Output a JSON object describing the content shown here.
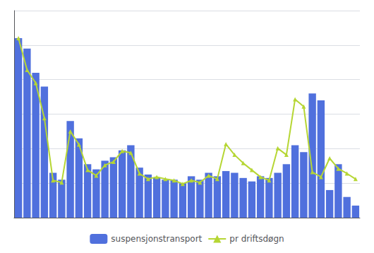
{
  "chart_data": {
    "type": "bar",
    "categories": [
      null,
      null,
      null,
      null,
      null,
      null,
      null,
      null,
      null,
      null,
      null,
      null,
      null,
      null,
      null,
      null,
      null,
      null,
      null,
      null,
      null,
      null,
      null,
      null,
      null,
      null,
      null,
      null,
      null,
      null,
      null,
      null,
      null,
      null,
      null,
      null,
      null,
      null,
      null,
      null
    ],
    "series": [
      {
        "name": "suspensjonstransport",
        "type": "bar",
        "values": [
          520,
          490,
          420,
          380,
          130,
          110,
          280,
          230,
          155,
          140,
          165,
          175,
          195,
          210,
          145,
          125,
          115,
          110,
          110,
          100,
          120,
          110,
          130,
          120,
          135,
          130,
          115,
          105,
          120,
          115,
          130,
          155,
          210,
          190,
          360,
          340,
          80,
          155,
          60,
          35
        ]
      },
      {
        "name": "pr driftsdøgn",
        "type": "line",
        "marker": "triangle",
        "values": [
          520,
          428,
          390,
          288,
          108,
          102,
          250,
          212,
          138,
          122,
          152,
          162,
          193,
          188,
          128,
          112,
          118,
          112,
          108,
          98,
          108,
          102,
          122,
          112,
          213,
          182,
          158,
          138,
          118,
          108,
          201,
          182,
          343,
          322,
          132,
          118,
          172,
          142,
          128,
          112
        ]
      }
    ],
    "ylim": [
      0,
      600
    ],
    "yticks": [
      0,
      100,
      200,
      300,
      400,
      500,
      600
    ],
    "grid": true,
    "legend": "bottom",
    "tick_labels": false
  }
}
